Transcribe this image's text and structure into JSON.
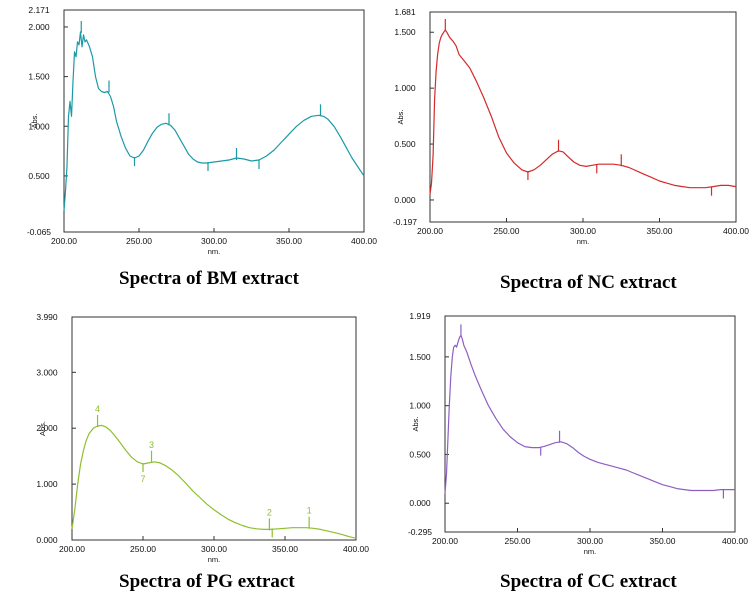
{
  "chart_data": [
    {
      "id": "bm",
      "type": "line",
      "title": "Spectra of BM extract",
      "xlabel": "nm.",
      "ylabel": "Abs.",
      "color": "#1b9aa6",
      "xlim": [
        200,
        400
      ],
      "ylim": [
        -0.065,
        2.171
      ],
      "xticks": [
        200,
        250,
        300,
        350,
        400
      ],
      "xtick_labels": [
        "200.00",
        "250.00",
        "300.00",
        "350.00",
        "400.00"
      ],
      "yticks": [
        -0.065,
        0.5,
        1.0,
        1.5,
        2.0,
        2.171
      ],
      "ytick_labels": [
        "-0.065",
        "0.500",
        "1.000",
        "1.500",
        "2.000",
        "2.171"
      ],
      "x": [
        200,
        201,
        202,
        203,
        204,
        205,
        206,
        207,
        208,
        209,
        210,
        211,
        212,
        213,
        214,
        215,
        217,
        219,
        221,
        223,
        225,
        227,
        229,
        231,
        233,
        235,
        238,
        241,
        244,
        247,
        250,
        253,
        256,
        259,
        262,
        265,
        268,
        271,
        274,
        277,
        280,
        283,
        286,
        289,
        292,
        295,
        300,
        305,
        310,
        315,
        320,
        325,
        330,
        335,
        340,
        345,
        350,
        355,
        360,
        365,
        370,
        373,
        376,
        380,
        384,
        388,
        392,
        396,
        400
      ],
      "y": [
        0.15,
        0.35,
        0.6,
        1.1,
        1.25,
        1.1,
        1.45,
        1.75,
        1.7,
        1.85,
        1.82,
        1.95,
        1.8,
        1.92,
        1.85,
        1.87,
        1.8,
        1.7,
        1.5,
        1.38,
        1.35,
        1.34,
        1.35,
        1.3,
        1.2,
        1.05,
        0.9,
        0.78,
        0.7,
        0.68,
        0.7,
        0.76,
        0.85,
        0.93,
        0.99,
        1.02,
        1.03,
        1.01,
        0.96,
        0.88,
        0.8,
        0.72,
        0.67,
        0.64,
        0.63,
        0.63,
        0.64,
        0.65,
        0.66,
        0.68,
        0.67,
        0.65,
        0.66,
        0.7,
        0.76,
        0.84,
        0.92,
        1.0,
        1.06,
        1.1,
        1.11,
        1.1,
        1.07,
        1.0,
        0.9,
        0.79,
        0.68,
        0.59,
        0.5
      ],
      "peak_marks": [
        {
          "x": 211.5,
          "y": 1.95,
          "label": ""
        },
        {
          "x": 230,
          "y": 1.35,
          "label": ""
        },
        {
          "x": 270,
          "y": 1.02,
          "label": ""
        },
        {
          "x": 315,
          "y": 0.67,
          "label": ""
        },
        {
          "x": 371,
          "y": 1.11,
          "label": ""
        }
      ],
      "valley_marks": [
        {
          "x": 247,
          "y": 0.68,
          "label": ""
        },
        {
          "x": 296,
          "y": 0.63,
          "label": ""
        },
        {
          "x": 330,
          "y": 0.65,
          "label": ""
        }
      ]
    },
    {
      "id": "nc",
      "type": "line",
      "title": "Spectra of NC extract",
      "xlabel": "nm.",
      "ylabel": "Abs.",
      "color": "#d42a2a",
      "xlim": [
        200,
        400
      ],
      "ylim": [
        -0.197,
        1.681
      ],
      "xticks": [
        200,
        250,
        300,
        350,
        400
      ],
      "xtick_labels": [
        "200.00",
        "250.00",
        "300.00",
        "350.00",
        "400.00"
      ],
      "yticks": [
        -0.197,
        0.0,
        0.5,
        1.0,
        1.5,
        1.681
      ],
      "ytick_labels": [
        "-0.197",
        "0.000",
        "0.500",
        "1.000",
        "1.500",
        "1.681"
      ],
      "x": [
        200,
        201,
        202,
        203,
        204,
        205,
        206,
        207,
        208,
        209,
        210,
        211,
        213,
        215,
        217,
        219,
        222,
        226,
        230,
        235,
        240,
        245,
        250,
        255,
        260,
        264,
        268,
        272,
        276,
        280,
        284,
        287,
        290,
        294,
        298,
        302,
        306,
        310,
        315,
        320,
        325,
        330,
        335,
        340,
        345,
        350,
        355,
        360,
        365,
        370,
        375,
        380,
        385,
        390,
        395,
        400
      ],
      "y": [
        0.05,
        0.15,
        0.4,
        0.9,
        1.15,
        1.3,
        1.4,
        1.45,
        1.48,
        1.5,
        1.52,
        1.5,
        1.45,
        1.42,
        1.38,
        1.3,
        1.25,
        1.18,
        1.07,
        0.92,
        0.75,
        0.56,
        0.42,
        0.33,
        0.27,
        0.25,
        0.27,
        0.31,
        0.36,
        0.41,
        0.44,
        0.43,
        0.39,
        0.34,
        0.31,
        0.3,
        0.31,
        0.32,
        0.32,
        0.32,
        0.31,
        0.29,
        0.26,
        0.23,
        0.2,
        0.17,
        0.15,
        0.13,
        0.12,
        0.11,
        0.11,
        0.11,
        0.12,
        0.13,
        0.13,
        0.12
      ],
      "peak_marks": [
        {
          "x": 210,
          "y": 1.52,
          "label": ""
        },
        {
          "x": 284,
          "y": 0.44,
          "label": ""
        },
        {
          "x": 325,
          "y": 0.31,
          "label": ""
        }
      ],
      "valley_marks": [
        {
          "x": 264,
          "y": 0.25,
          "label": ""
        },
        {
          "x": 309,
          "y": 0.31,
          "label": ""
        },
        {
          "x": 384,
          "y": 0.11,
          "label": ""
        }
      ]
    },
    {
      "id": "pg",
      "type": "line",
      "title": "Spectra of PG extract",
      "xlabel": "nm.",
      "ylabel": "Abs.",
      "color": "#8fbf2e",
      "xlim": [
        200,
        400
      ],
      "ylim": [
        0,
        3.99
      ],
      "xticks": [
        200,
        250,
        300,
        350,
        400
      ],
      "xtick_labels": [
        "200.00",
        "250.00",
        "300.00",
        "350.00",
        "400.00"
      ],
      "yticks": [
        0,
        1.0,
        2.0,
        3.0,
        3.99
      ],
      "ytick_labels": [
        "0.000",
        "1.000",
        "2.000",
        "3.000",
        "3.990"
      ],
      "x": [
        200,
        202,
        204,
        206,
        208,
        210,
        212,
        215,
        218,
        221,
        224,
        227,
        230,
        234,
        238,
        242,
        246,
        250,
        254,
        258,
        262,
        266,
        270,
        275,
        280,
        285,
        290,
        295,
        300,
        305,
        310,
        315,
        320,
        325,
        330,
        335,
        340,
        345,
        350,
        355,
        360,
        365,
        370,
        375,
        380,
        385,
        390,
        395,
        400
      ],
      "y": [
        0.2,
        0.55,
        1.0,
        1.35,
        1.6,
        1.78,
        1.9,
        2.0,
        2.04,
        2.05,
        2.02,
        1.96,
        1.87,
        1.74,
        1.6,
        1.48,
        1.4,
        1.36,
        1.38,
        1.4,
        1.38,
        1.33,
        1.26,
        1.15,
        1.02,
        0.88,
        0.76,
        0.64,
        0.54,
        0.45,
        0.37,
        0.31,
        0.26,
        0.22,
        0.2,
        0.19,
        0.19,
        0.2,
        0.21,
        0.22,
        0.22,
        0.22,
        0.21,
        0.19,
        0.16,
        0.13,
        0.1,
        0.06,
        0.03
      ],
      "peak_marks": [
        {
          "x": 218,
          "y": 2.04,
          "label": "4"
        },
        {
          "x": 256,
          "y": 1.4,
          "label": "3"
        },
        {
          "x": 339,
          "y": 0.19,
          "label": "2"
        },
        {
          "x": 367,
          "y": 0.22,
          "label": "1"
        }
      ],
      "valley_marks": [
        {
          "x": 250,
          "y": 1.36,
          "label": "7"
        },
        {
          "x": 341,
          "y": 0.19,
          "label": ""
        }
      ]
    },
    {
      "id": "cc",
      "type": "line",
      "title": "Spectra of CC extract",
      "xlabel": "nm.",
      "ylabel": "Abs.",
      "color": "#8e5fc1",
      "xlim": [
        200,
        400
      ],
      "ylim": [
        -0.295,
        1.919
      ],
      "xticks": [
        200,
        250,
        300,
        350,
        400
      ],
      "xtick_labels": [
        "200.00",
        "250.00",
        "300.00",
        "350.00",
        "400.00"
      ],
      "yticks": [
        -0.295,
        0.0,
        0.5,
        1.0,
        1.5,
        1.919
      ],
      "ytick_labels": [
        "-0.295",
        "0.000",
        "0.500",
        "1.000",
        "1.500",
        "1.919"
      ],
      "x": [
        200,
        201,
        202,
        203,
        204,
        205,
        206,
        207,
        208,
        209,
        210,
        211,
        212,
        213,
        215,
        218,
        221,
        225,
        230,
        235,
        240,
        245,
        250,
        255,
        260,
        265,
        268,
        272,
        276,
        280,
        284,
        288,
        292,
        296,
        300,
        305,
        310,
        315,
        320,
        325,
        330,
        335,
        340,
        345,
        350,
        355,
        360,
        365,
        370,
        375,
        380,
        385,
        390,
        395,
        400
      ],
      "y": [
        0.1,
        0.3,
        0.65,
        1.0,
        1.3,
        1.5,
        1.6,
        1.62,
        1.6,
        1.65,
        1.7,
        1.72,
        1.68,
        1.62,
        1.55,
        1.42,
        1.3,
        1.16,
        1.0,
        0.87,
        0.76,
        0.68,
        0.62,
        0.58,
        0.57,
        0.57,
        0.58,
        0.6,
        0.62,
        0.63,
        0.61,
        0.57,
        0.52,
        0.48,
        0.45,
        0.42,
        0.4,
        0.38,
        0.36,
        0.34,
        0.31,
        0.28,
        0.25,
        0.22,
        0.19,
        0.17,
        0.15,
        0.14,
        0.13,
        0.13,
        0.13,
        0.13,
        0.14,
        0.14,
        0.14
      ],
      "peak_marks": [
        {
          "x": 211,
          "y": 1.72,
          "label": ""
        },
        {
          "x": 279,
          "y": 0.63,
          "label": ""
        }
      ],
      "valley_marks": [
        {
          "x": 266,
          "y": 0.57,
          "label": ""
        },
        {
          "x": 392,
          "y": 0.13,
          "label": ""
        }
      ]
    }
  ]
}
